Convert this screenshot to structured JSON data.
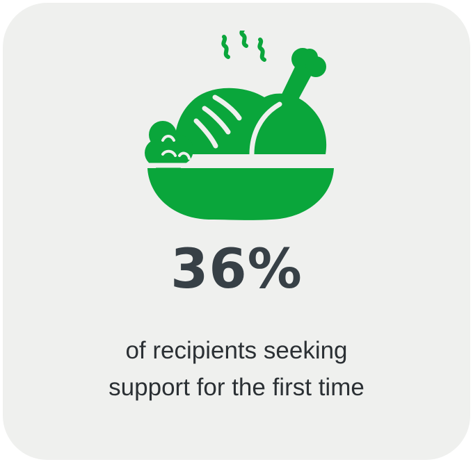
{
  "stat": {
    "value": "36%",
    "caption": "of recipients seeking support for the first time"
  },
  "icon": {
    "name": "roast-chicken-icon",
    "color": "#0aa63b"
  },
  "colors": {
    "card_background": "#eff0ee",
    "stat_text": "#374046",
    "caption_text": "#2b3034"
  }
}
